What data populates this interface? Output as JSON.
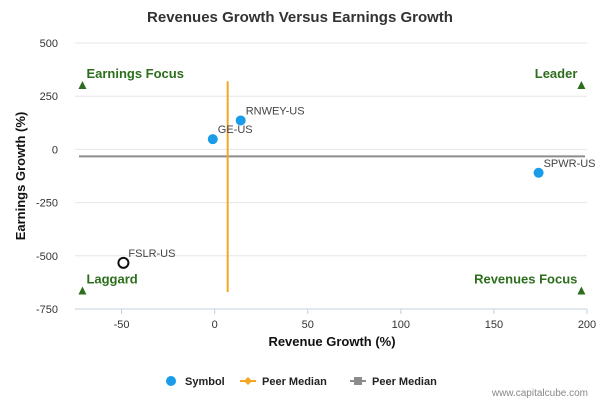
{
  "credit": "www.capitalcube.com",
  "colors": {
    "symbol": "#1a9ce8",
    "peer_median_x": "#f5a623",
    "peer_median_y": "#8c8c8c",
    "quadrant": "#2c6e1c",
    "grid": "#e6e6e6"
  },
  "chart_data": {
    "type": "scatter",
    "title": "Revenues Growth Versus Earnings Growth",
    "xlabel": "Revenue Growth (%)",
    "ylabel": "Earnings Growth (%)",
    "xlim": [
      -75,
      200
    ],
    "ylim": [
      -750,
      500
    ],
    "xticks": [
      -50,
      0,
      50,
      100,
      150,
      200
    ],
    "yticks": [
      500,
      250,
      0,
      -250,
      -500,
      -750
    ],
    "grid": "horizontal",
    "points": [
      {
        "label": "RNWEY-US",
        "x": 14,
        "y": 136,
        "style": "filled"
      },
      {
        "label": "GE-US",
        "x": -1,
        "y": 48,
        "style": "filled"
      },
      {
        "label": "SPWR-US",
        "x": 174,
        "y": -110,
        "style": "filled"
      },
      {
        "label": "FSLR-US",
        "x": -49,
        "y": -533,
        "style": "hollow"
      }
    ],
    "peer_median_revenue_growth": 7,
    "peer_median_earnings_growth": -33,
    "quadrants": [
      {
        "label": "Earnings Focus",
        "x": -71,
        "y": 298,
        "corner": "top-left"
      },
      {
        "label": "Leader",
        "x": 197,
        "y": 298,
        "corner": "top-right"
      },
      {
        "label": "Laggard",
        "x": -71,
        "y": -668,
        "corner": "bottom-left"
      },
      {
        "label": "Revenues Focus",
        "x": 197,
        "y": -668,
        "corner": "bottom-right"
      }
    ],
    "legend": {
      "placement": "bottom",
      "items": [
        {
          "name": "Symbol",
          "marker": "circle"
        },
        {
          "name": "Peer Median",
          "marker": "diamond-line"
        },
        {
          "name": "Peer Median",
          "marker": "square-line"
        }
      ]
    }
  }
}
